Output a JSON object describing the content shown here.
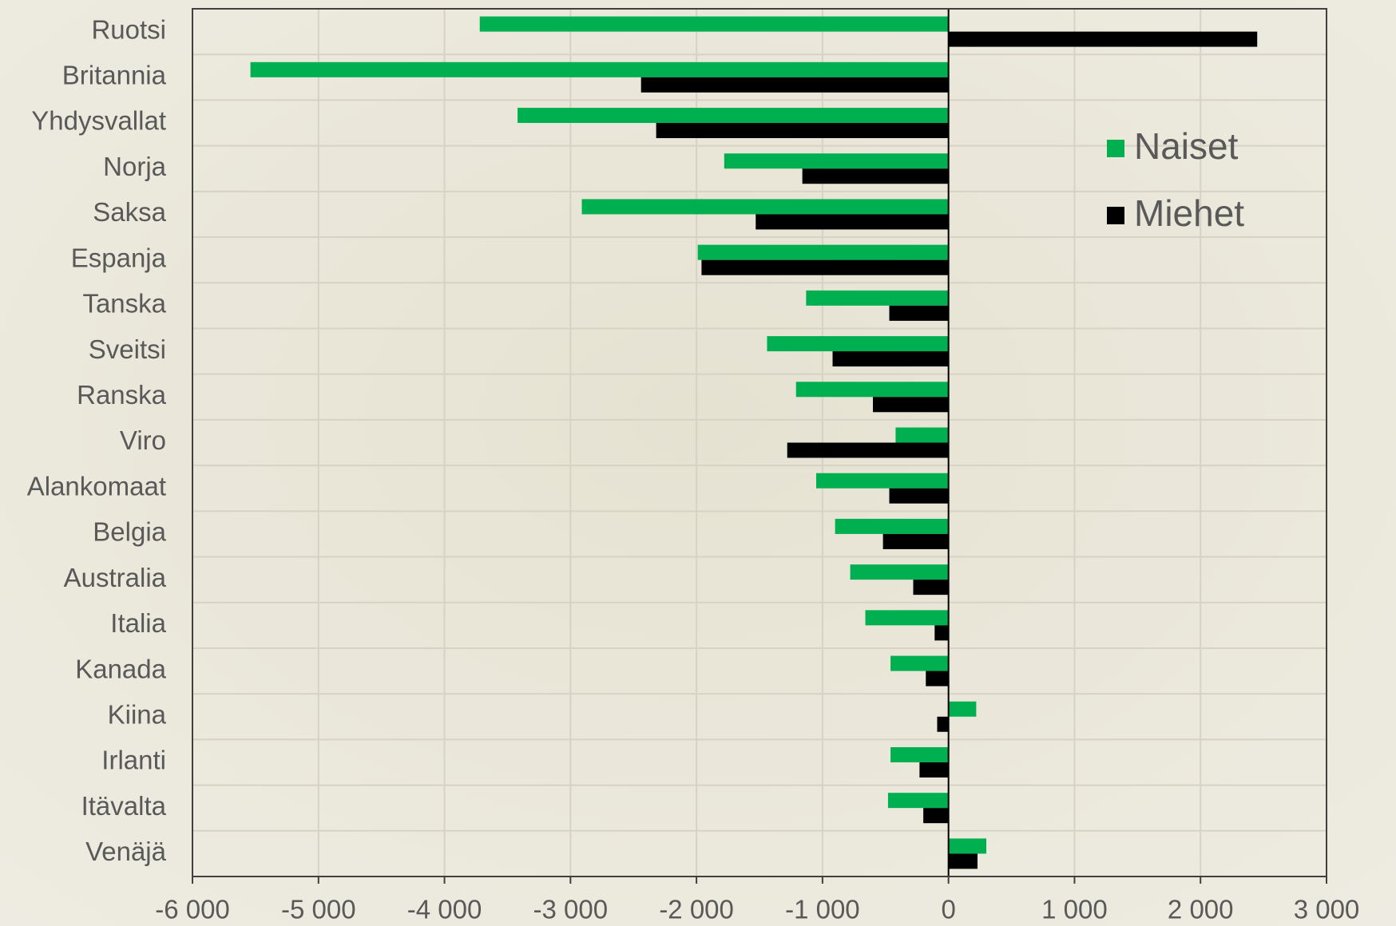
{
  "chart_data": {
    "type": "hbar",
    "categories": [
      "Ruotsi",
      "Britannia",
      "Yhdysvallat",
      "Norja",
      "Saksa",
      "Espanja",
      "Tanska",
      "Sveitsi",
      "Ranska",
      "Viro",
      "Alankomaat",
      "Belgia",
      "Australia",
      "Italia",
      "Kanada",
      "Kiina",
      "Irlanti",
      "Itävalta",
      "Venäjä"
    ],
    "series": [
      {
        "name": "Naiset",
        "color": "#00b050",
        "values": [
          -3720,
          -5540,
          -3420,
          -1780,
          -2910,
          -1990,
          -1130,
          -1440,
          -1210,
          -420,
          -1050,
          -900,
          -780,
          -660,
          -460,
          220,
          -460,
          -480,
          300
        ]
      },
      {
        "name": "Miehet",
        "color": "#000000",
        "values": [
          2450,
          -2440,
          -2320,
          -1160,
          -1530,
          -1960,
          -470,
          -920,
          -600,
          -1280,
          -470,
          -520,
          -280,
          -110,
          -180,
          -90,
          -230,
          -200,
          230
        ]
      }
    ],
    "xlim": [
      -6000,
      3000
    ],
    "xticks": [
      {
        "value": -6000,
        "label": "-6 000"
      },
      {
        "value": -5000,
        "label": "-5 000"
      },
      {
        "value": -4000,
        "label": "-4 000"
      },
      {
        "value": -3000,
        "label": "-3 000"
      },
      {
        "value": -2000,
        "label": "-2 000"
      },
      {
        "value": -1000,
        "label": "-1 000"
      },
      0,
      {
        "value": 1000,
        "label": "1 000"
      },
      {
        "value": 2000,
        "label": "2 000"
      },
      {
        "value": 3000,
        "label": "3 000"
      }
    ],
    "grid": true,
    "legend_position": "upper right"
  }
}
